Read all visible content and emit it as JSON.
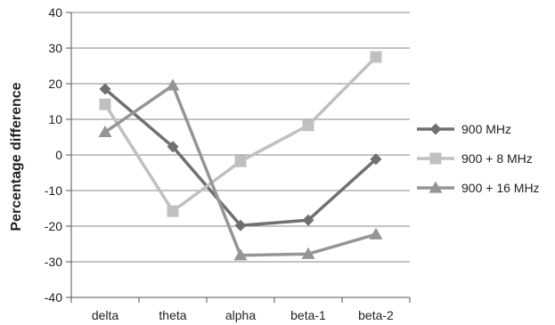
{
  "chart_data": {
    "type": "line",
    "title": "",
    "xlabel": "",
    "ylabel": "Percentage difference",
    "categories": [
      "delta",
      "theta",
      "alpha",
      "beta-1",
      "beta-2"
    ],
    "ylim": [
      -40,
      40
    ],
    "yticks": [
      -40,
      -30,
      -20,
      -10,
      0,
      10,
      20,
      30,
      40
    ],
    "ytick_labels": [
      "-40",
      "-30",
      "-20",
      "-10",
      "0",
      "10",
      "20",
      "30",
      "40"
    ],
    "grid": true,
    "legend_position": "right",
    "series": [
      {
        "name": "900 MHz",
        "marker": "diamond",
        "color": "#707070",
        "values": [
          18.5,
          2.3,
          -19.8,
          -18.3,
          -1.2
        ]
      },
      {
        "name": "900 + 8 MHz",
        "marker": "square",
        "color": "#c0c0c0",
        "values": [
          14.2,
          -15.8,
          -1.8,
          8.3,
          27.5
        ]
      },
      {
        "name": "900 + 16 MHz",
        "marker": "triangle",
        "color": "#959595",
        "values": [
          6.4,
          19.5,
          -28.2,
          -27.8,
          -22.3
        ]
      }
    ]
  }
}
